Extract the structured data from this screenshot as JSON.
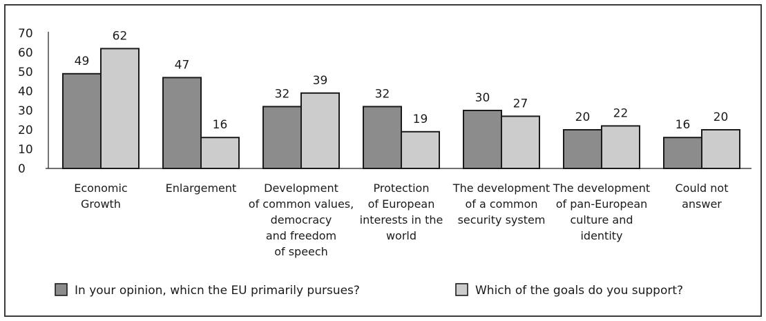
{
  "chart_data": {
    "type": "bar",
    "title": "",
    "xlabel": "",
    "ylabel": "",
    "ylim": [
      0,
      70
    ],
    "yticks": [
      0,
      10,
      20,
      30,
      40,
      50,
      60,
      70
    ],
    "grid": false,
    "legend_position": "bottom",
    "categories": [
      [
        "Economic",
        "Growth"
      ],
      [
        "Enlargement"
      ],
      [
        "Development",
        "of common values,",
        "democracy",
        "and freedom",
        "of speech"
      ],
      [
        "Protection",
        "of European",
        "interests in the",
        "world"
      ],
      [
        "The development",
        "of a common",
        "security system"
      ],
      [
        "The development",
        "of pan-European",
        "culture and",
        "identity"
      ],
      [
        "Could not",
        "answer"
      ]
    ],
    "series": [
      {
        "name": "In your opinion, whicn the EU primarily pursues?",
        "color": "#8c8c8c",
        "values": [
          49,
          47,
          32,
          32,
          30,
          20,
          16
        ]
      },
      {
        "name": "Which of the goals do you support?",
        "color": "#cccccc",
        "values": [
          62,
          16,
          39,
          19,
          27,
          22,
          20
        ]
      }
    ]
  }
}
